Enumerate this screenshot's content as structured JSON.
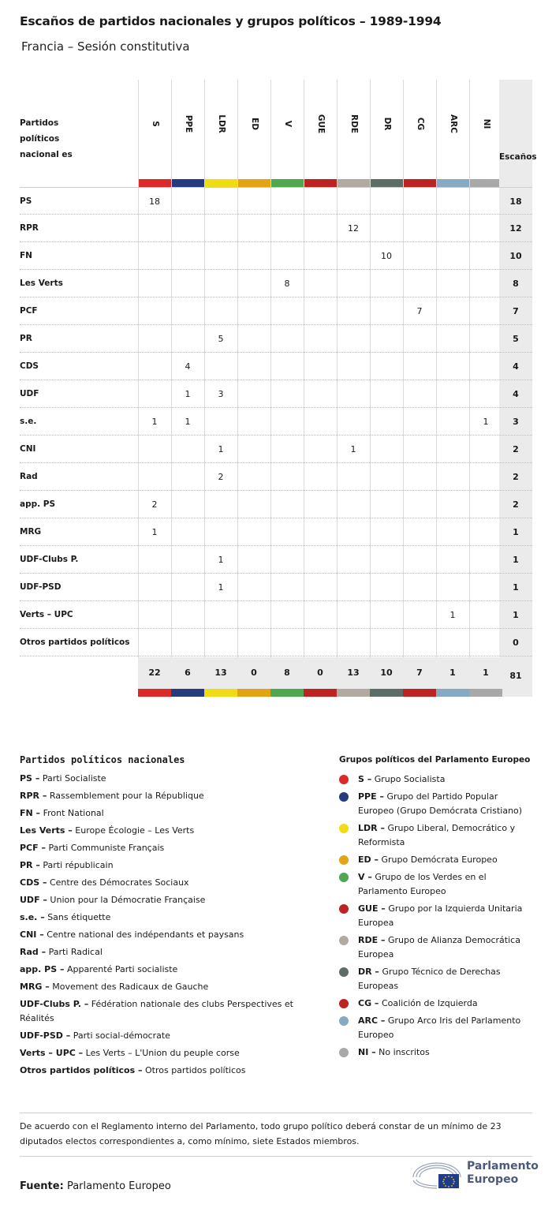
{
  "title": "Escaños de partidos nacionales y grupos políticos – 1989-1994",
  "subtitle": "Francia – Sesión constitutiva",
  "table": {
    "party_header": "Partidos políticos nacional es",
    "total_header": "Escaños",
    "groups": [
      {
        "code": "S",
        "color": "#dc2a2a"
      },
      {
        "code": "PPE",
        "color": "#263a7e"
      },
      {
        "code": "LDR",
        "color": "#f0dc14"
      },
      {
        "code": "ED",
        "color": "#e2a414"
      },
      {
        "code": "V",
        "color": "#4fa84f"
      },
      {
        "code": "GUE",
        "color": "#bd2323"
      },
      {
        "code": "RDE",
        "color": "#b0aaa1"
      },
      {
        "code": "DR",
        "color": "#5c6e66"
      },
      {
        "code": "CG",
        "color": "#bd2323"
      },
      {
        "code": "ARC",
        "color": "#86aac2"
      },
      {
        "code": "NI",
        "color": "#a8a8a8"
      }
    ],
    "rows": [
      {
        "party": "PS",
        "cells": [
          "18",
          "",
          "",
          "",
          "",
          "",
          "",
          "",
          "",
          "",
          ""
        ],
        "total": "18"
      },
      {
        "party": "RPR",
        "cells": [
          "",
          "",
          "",
          "",
          "",
          "",
          "12",
          "",
          "",
          "",
          ""
        ],
        "total": "12"
      },
      {
        "party": "FN",
        "cells": [
          "",
          "",
          "",
          "",
          "",
          "",
          "",
          "10",
          "",
          "",
          ""
        ],
        "total": "10"
      },
      {
        "party": "Les Verts",
        "cells": [
          "",
          "",
          "",
          "",
          "8",
          "",
          "",
          "",
          "",
          "",
          ""
        ],
        "total": "8"
      },
      {
        "party": "PCF",
        "cells": [
          "",
          "",
          "",
          "",
          "",
          "",
          "",
          "",
          "7",
          "",
          ""
        ],
        "total": "7"
      },
      {
        "party": "PR",
        "cells": [
          "",
          "",
          "5",
          "",
          "",
          "",
          "",
          "",
          "",
          "",
          ""
        ],
        "total": "5"
      },
      {
        "party": "CDS",
        "cells": [
          "",
          "4",
          "",
          "",
          "",
          "",
          "",
          "",
          "",
          "",
          ""
        ],
        "total": "4"
      },
      {
        "party": "UDF",
        "cells": [
          "",
          "1",
          "3",
          "",
          "",
          "",
          "",
          "",
          "",
          "",
          ""
        ],
        "total": "4"
      },
      {
        "party": "s.e.",
        "cells": [
          "1",
          "1",
          "",
          "",
          "",
          "",
          "",
          "",
          "",
          "",
          "1"
        ],
        "total": "3"
      },
      {
        "party": "CNI",
        "cells": [
          "",
          "",
          "1",
          "",
          "",
          "",
          "1",
          "",
          "",
          "",
          ""
        ],
        "total": "2"
      },
      {
        "party": "Rad",
        "cells": [
          "",
          "",
          "2",
          "",
          "",
          "",
          "",
          "",
          "",
          "",
          ""
        ],
        "total": "2"
      },
      {
        "party": "app. PS",
        "cells": [
          "2",
          "",
          "",
          "",
          "",
          "",
          "",
          "",
          "",
          "",
          ""
        ],
        "total": "2"
      },
      {
        "party": "MRG",
        "cells": [
          "1",
          "",
          "",
          "",
          "",
          "",
          "",
          "",
          "",
          "",
          ""
        ],
        "total": "1"
      },
      {
        "party": "UDF-Clubs P.",
        "cells": [
          "",
          "",
          "1",
          "",
          "",
          "",
          "",
          "",
          "",
          "",
          ""
        ],
        "total": "1"
      },
      {
        "party": "UDF-PSD",
        "cells": [
          "",
          "",
          "1",
          "",
          "",
          "",
          "",
          "",
          "",
          "",
          ""
        ],
        "total": "1"
      },
      {
        "party": "Verts – UPC",
        "cells": [
          "",
          "",
          "",
          "",
          "",
          "",
          "",
          "",
          "",
          "1",
          ""
        ],
        "total": "1"
      },
      {
        "party": "Otros partidos políticos",
        "cells": [
          "",
          "",
          "",
          "",
          "",
          "",
          "",
          "",
          "",
          "",
          ""
        ],
        "total": "0"
      }
    ],
    "group_totals": [
      "22",
      "6",
      "13",
      "0",
      "8",
      "0",
      "13",
      "10",
      "7",
      "1",
      "1"
    ],
    "grand_total": "81"
  },
  "legend_parties": {
    "heading": "Partidos políticos nacionales",
    "items": [
      {
        "abbr": "PS –",
        "name": "Parti Socialiste"
      },
      {
        "abbr": "RPR –",
        "name": "Rassemblement pour la République"
      },
      {
        "abbr": "FN –",
        "name": "Front National"
      },
      {
        "abbr": "Les Verts –",
        "name": "Europe Écologie – Les Verts"
      },
      {
        "abbr": "PCF –",
        "name": "Parti Communiste Français"
      },
      {
        "abbr": "PR –",
        "name": "Parti républicain"
      },
      {
        "abbr": "CDS –",
        "name": "Centre des Démocrates Sociaux"
      },
      {
        "abbr": "UDF –",
        "name": "Union pour la Démocratie Française"
      },
      {
        "abbr": "s.e. –",
        "name": "Sans étiquette"
      },
      {
        "abbr": "CNI –",
        "name": "Centre national des indépendants et paysans"
      },
      {
        "abbr": "Rad –",
        "name": "Parti Radical"
      },
      {
        "abbr": "app. PS –",
        "name": "Apparenté Parti socialiste"
      },
      {
        "abbr": "MRG –",
        "name": "Movement des Radicaux de Gauche"
      },
      {
        "abbr": "UDF-Clubs P. –",
        "name": "Fédération nationale des clubs Perspectives et Réalités"
      },
      {
        "abbr": "UDF-PSD –",
        "name": "Parti social-démocrate"
      },
      {
        "abbr": "Verts – UPC –",
        "name": "Les Verts – L'Union du peuple corse"
      },
      {
        "abbr": "Otros partidos políticos –",
        "name": "Otros partidos políticos"
      }
    ]
  },
  "legend_groups": {
    "heading": "Grupos políticos del Parlamento Europeo",
    "items": [
      {
        "abbr": "S –",
        "name": "Grupo Socialista",
        "color": "#dc2a2a"
      },
      {
        "abbr": "PPE –",
        "name": "Grupo del Partido Popular Europeo (Grupo Demócrata Cristiano)",
        "color": "#263a7e"
      },
      {
        "abbr": "LDR –",
        "name": "Grupo Liberal, Democrático y Reformista",
        "color": "#f0dc14"
      },
      {
        "abbr": "ED –",
        "name": "Grupo Demócrata Europeo",
        "color": "#e2a414"
      },
      {
        "abbr": "V –",
        "name": "Grupo de los Verdes en el Parlamento Europeo",
        "color": "#4fa84f"
      },
      {
        "abbr": "GUE –",
        "name": "Grupo por la Izquierda Unitaria Europea",
        "color": "#bd2323"
      },
      {
        "abbr": "RDE –",
        "name": "Grupo de Alianza Democrática Europea",
        "color": "#b0aaa1"
      },
      {
        "abbr": "DR –",
        "name": "Grupo Técnico de Derechas Europeas",
        "color": "#5c6e66"
      },
      {
        "abbr": "CG –",
        "name": "Coalición de Izquierda",
        "color": "#bd2323"
      },
      {
        "abbr": "ARC –",
        "name": "Grupo Arco Iris del Parlamento Europeo",
        "color": "#86aac2"
      },
      {
        "abbr": "NI –",
        "name": "No inscritos",
        "color": "#a8a8a8"
      }
    ]
  },
  "note": "De acuerdo con el Reglamento interno del Parlamento, todo grupo político deberá constar de un mínimo de 23 diputados electos correspondientes a, como mínimo, siete Estados miembros.",
  "source": {
    "label": "Fuente:",
    "value": "Parlamento Europeo"
  },
  "logo": {
    "line1": "Parlamento",
    "line2": "Europeo"
  }
}
